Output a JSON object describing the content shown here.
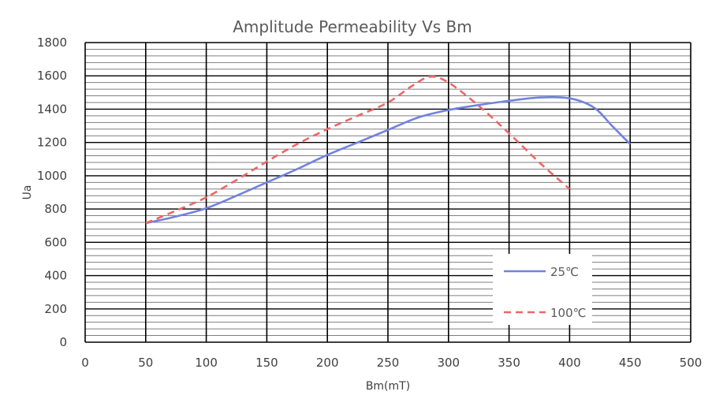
{
  "chart_data": {
    "type": "line",
    "title": "Amplitude Permeability Vs Bm",
    "xlabel": "Bm(mT)",
    "ylabel": "Ua",
    "xlim": [
      0,
      500
    ],
    "ylim": [
      0,
      1800
    ],
    "x_ticks": [
      0,
      50,
      100,
      150,
      200,
      250,
      300,
      350,
      400,
      450,
      500
    ],
    "y_ticks": [
      0,
      200,
      400,
      600,
      800,
      1000,
      1200,
      1400,
      1600,
      1800
    ],
    "x_major_grid": true,
    "y_major_grid": true,
    "y_minor_grid": true,
    "y_minor_step": 40,
    "legend_position": "bottom-right",
    "series": [
      {
        "name": "25℃",
        "color": "#7282E0",
        "style": "solid",
        "x": [
          50,
          75,
          100,
          125,
          150,
          175,
          200,
          225,
          250,
          275,
          300,
          325,
          350,
          375,
          400,
          420,
          435,
          450
        ],
        "y": [
          715,
          755,
          805,
          880,
          960,
          1040,
          1125,
          1200,
          1275,
          1350,
          1395,
          1425,
          1450,
          1470,
          1465,
          1410,
          1300,
          1190
        ]
      },
      {
        "name": "100℃",
        "color": "#EE6666",
        "style": "dashed",
        "x": [
          50,
          75,
          100,
          125,
          150,
          175,
          200,
          225,
          250,
          270,
          285,
          300,
          325,
          350,
          375,
          400
        ],
        "y": [
          715,
          790,
          870,
          975,
          1085,
          1190,
          1280,
          1360,
          1440,
          1540,
          1595,
          1560,
          1420,
          1255,
          1080,
          920
        ]
      }
    ]
  }
}
